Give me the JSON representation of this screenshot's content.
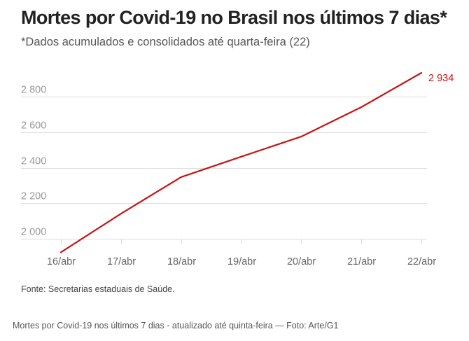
{
  "title": "Mortes por Covid-19 no Brasil nos últimos 7 dias*",
  "subtitle": "*Dados acumulados e consolidados até quarta-feira (22)",
  "source": "Fonte: Secretarias estaduais de Saúde.",
  "caption": "Mortes por Covid-19 nos últimos 7 dias - atualizado até quinta-feira — Foto: Arte/G1",
  "colors": {
    "line": "#c41616",
    "grid": "#dddddd",
    "axis_text": "#999999"
  },
  "chart_data": {
    "type": "line",
    "title": "Mortes por Covid-19 no Brasil nos últimos 7 dias*",
    "subtitle": "*Dados acumulados e consolidados até quarta-feira (22)",
    "categories": [
      "16/abr",
      "17/abr",
      "18/abr",
      "19/abr",
      "20/abr",
      "21/abr",
      "22/abr"
    ],
    "values": [
      1924,
      2141,
      2347,
      2462,
      2575,
      2741,
      2934
    ],
    "y_ticks": [
      2000,
      2200,
      2400,
      2600,
      2800
    ],
    "y_tick_labels": [
      "2 000",
      "2 200",
      "2 400",
      "2 600",
      "2 800"
    ],
    "ylim": [
      1900,
      2990
    ],
    "grid": true,
    "annotations": [
      {
        "index": 6,
        "text": "2 934"
      }
    ],
    "xlabel": "",
    "ylabel": ""
  }
}
